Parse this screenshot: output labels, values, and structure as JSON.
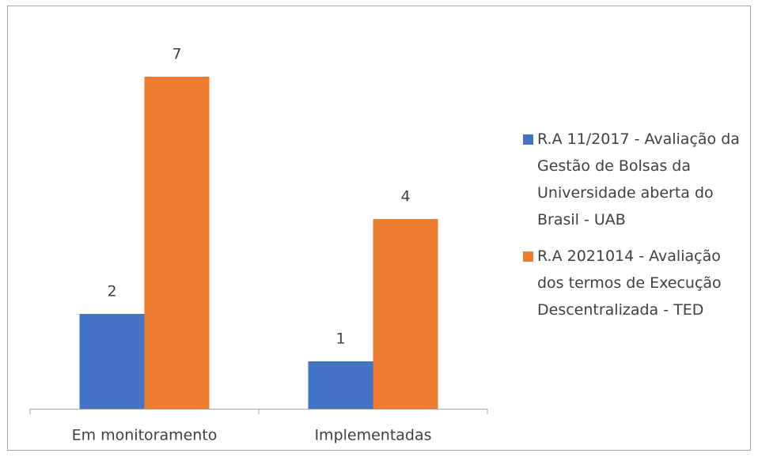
{
  "chart_data": {
    "type": "bar",
    "categories": [
      "Em monitoramento",
      "Implementadas"
    ],
    "series": [
      {
        "name": "R.A 11/2017 - Avaliação da Gestão de Bolsas da Universidade aberta do Brasil - UAB",
        "color": "#4472c4",
        "values": [
          2,
          1
        ]
      },
      {
        "name": "R.A 2021014 - Avaliação dos termos de Execução Descentralizada - TED",
        "color": "#ed7d31",
        "values": [
          7,
          4
        ]
      }
    ],
    "ylim": [
      0,
      8
    ],
    "grid": false,
    "legend": "right"
  }
}
